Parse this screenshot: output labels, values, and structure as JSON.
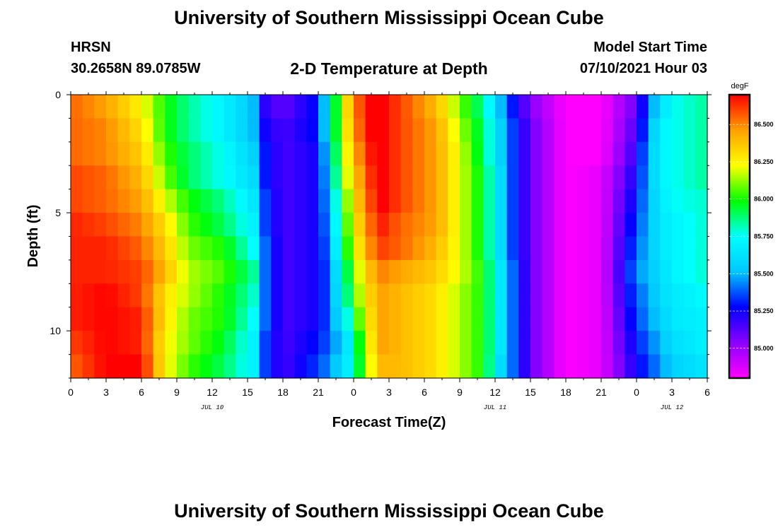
{
  "header": {
    "title": "University of Southern Mississippi Ocean Cube",
    "station": "HRSN",
    "coords": "30.2658N  89.0785W",
    "subtitle": "2-D Temperature at Depth",
    "model_start_label": "Model Start Time",
    "model_start_value": "07/10/2021 Hour 03"
  },
  "footer": {
    "title": "University of Southern Mississippi Ocean Cube"
  },
  "chart_data": {
    "type": "heatmap",
    "title": "2-D Temperature at Depth",
    "xlabel": "Forecast Time(Z)",
    "ylabel": "Depth (ft)",
    "x_ticks": [
      "0",
      "3",
      "6",
      "9",
      "12",
      "15",
      "18",
      "21",
      "0",
      "3",
      "6",
      "9",
      "12",
      "15",
      "18",
      "21",
      "0",
      "3",
      "6"
    ],
    "x_range_hours": [
      0,
      54
    ],
    "date_labels": [
      {
        "label": "JUL 10",
        "hour": 12
      },
      {
        "label": "JUL 11",
        "hour": 36
      },
      {
        "label": "JUL 12",
        "hour": 51
      }
    ],
    "y_ticks": [
      "0",
      "5",
      "10"
    ],
    "y_range_ft": [
      0,
      12
    ],
    "y_inverted": true,
    "colorbar": {
      "unit": "degF",
      "min": 84.8,
      "max": 86.7,
      "labels": [
        "86.500",
        "86.250",
        "86.000",
        "85.750",
        "85.500",
        "85.250",
        "85.000"
      ],
      "colors": [
        "#ff00ff",
        "#8b00ff",
        "#0000ff",
        "#00c8ff",
        "#00ffff",
        "#00ff00",
        "#ffff00",
        "#ffa000",
        "#ff0000"
      ]
    },
    "depths_ft": [
      0.5,
      1.5,
      2.5,
      3.5,
      4.5,
      5.5,
      6.5,
      7.5,
      8.5,
      9.5,
      10.5,
      11.5
    ],
    "time_keys_hours": [
      0,
      3,
      6,
      8,
      10,
      13,
      15.5,
      16.5,
      18,
      21,
      22,
      23,
      24,
      25,
      26.5,
      28,
      31,
      33,
      35,
      36.5,
      37.5,
      39,
      42,
      45,
      48,
      49,
      50,
      51,
      54
    ],
    "temperature_degF": [
      [
        86.55,
        86.45,
        86.25,
        86.0,
        85.85,
        85.7,
        85.5,
        85.2,
        85.1,
        85.3,
        85.7,
        86.2,
        86.45,
        86.7,
        86.7,
        86.6,
        86.4,
        86.1,
        85.85,
        85.5,
        85.3,
        85.05,
        84.8,
        84.8,
        85.1,
        85.4,
        85.6,
        85.75,
        85.85
      ],
      [
        86.55,
        86.5,
        86.3,
        86.0,
        85.85,
        85.7,
        85.5,
        85.25,
        85.15,
        85.3,
        85.7,
        86.2,
        86.4,
        86.7,
        86.7,
        86.6,
        86.45,
        86.15,
        85.9,
        85.55,
        85.35,
        85.1,
        84.8,
        84.8,
        85.15,
        85.45,
        85.7,
        85.75,
        85.85
      ],
      [
        86.55,
        86.5,
        86.35,
        86.05,
        85.9,
        85.75,
        85.55,
        85.3,
        85.15,
        85.25,
        85.65,
        86.15,
        86.35,
        86.65,
        86.7,
        86.6,
        86.45,
        86.2,
        85.9,
        85.55,
        85.35,
        85.1,
        84.8,
        84.8,
        85.2,
        85.5,
        85.7,
        85.75,
        85.85
      ],
      [
        86.6,
        86.55,
        86.4,
        86.1,
        85.9,
        85.75,
        85.6,
        85.3,
        85.15,
        85.25,
        85.6,
        86.1,
        86.3,
        86.6,
        86.7,
        86.6,
        86.45,
        86.2,
        85.95,
        85.6,
        85.35,
        85.1,
        84.8,
        84.85,
        85.25,
        85.5,
        85.7,
        85.75,
        85.85
      ],
      [
        86.6,
        86.55,
        86.45,
        86.2,
        86.0,
        85.85,
        85.65,
        85.35,
        85.15,
        85.25,
        85.55,
        86.0,
        86.25,
        86.55,
        86.7,
        86.6,
        86.45,
        86.2,
        85.95,
        85.6,
        85.35,
        85.1,
        84.8,
        84.85,
        85.3,
        85.5,
        85.65,
        85.75,
        85.8
      ],
      [
        86.65,
        86.6,
        86.5,
        86.3,
        86.05,
        85.9,
        85.7,
        85.35,
        85.15,
        85.25,
        85.5,
        85.95,
        86.2,
        86.5,
        86.65,
        86.55,
        86.45,
        86.2,
        85.95,
        85.6,
        85.35,
        85.1,
        84.8,
        84.85,
        85.35,
        85.5,
        85.65,
        85.7,
        85.8
      ],
      [
        86.65,
        86.65,
        86.55,
        86.35,
        86.1,
        86.0,
        85.75,
        85.4,
        85.15,
        85.25,
        85.45,
        85.9,
        86.15,
        86.45,
        86.6,
        86.55,
        86.4,
        86.2,
        85.95,
        85.6,
        85.35,
        85.1,
        84.8,
        84.85,
        85.4,
        85.5,
        85.65,
        85.7,
        85.8
      ],
      [
        86.65,
        86.65,
        86.6,
        86.4,
        86.15,
        86.05,
        85.85,
        85.4,
        85.15,
        85.25,
        85.4,
        85.8,
        86.05,
        86.35,
        86.5,
        86.45,
        86.35,
        86.2,
        86.0,
        85.65,
        85.4,
        85.1,
        84.8,
        84.85,
        85.45,
        85.5,
        85.6,
        85.7,
        85.8
      ],
      [
        86.65,
        86.7,
        86.6,
        86.3,
        86.15,
        86.0,
        85.8,
        85.4,
        85.15,
        85.25,
        85.4,
        85.75,
        86.0,
        86.3,
        86.45,
        86.4,
        86.3,
        86.15,
        86.0,
        85.65,
        85.4,
        85.1,
        84.8,
        84.85,
        85.4,
        85.45,
        85.6,
        85.65,
        85.75
      ],
      [
        86.65,
        86.7,
        86.65,
        86.3,
        86.1,
        86.0,
        85.75,
        85.4,
        85.15,
        85.25,
        85.4,
        85.65,
        85.9,
        86.25,
        86.45,
        86.4,
        86.3,
        86.15,
        86.0,
        85.65,
        85.4,
        85.1,
        84.8,
        84.85,
        85.35,
        85.45,
        85.55,
        85.65,
        85.7
      ],
      [
        86.6,
        86.7,
        86.65,
        86.25,
        86.1,
        85.95,
        85.7,
        85.35,
        85.15,
        85.3,
        85.4,
        85.55,
        85.75,
        86.2,
        86.45,
        86.4,
        86.3,
        86.15,
        86.0,
        85.65,
        85.4,
        85.1,
        84.8,
        84.85,
        85.3,
        85.4,
        85.5,
        85.6,
        85.7
      ],
      [
        86.55,
        86.7,
        86.7,
        86.25,
        86.05,
        85.9,
        85.7,
        85.35,
        85.15,
        85.35,
        85.45,
        85.6,
        85.75,
        86.15,
        86.4,
        86.4,
        86.3,
        86.15,
        86.0,
        85.6,
        85.4,
        85.1,
        84.8,
        84.85,
        85.25,
        85.35,
        85.45,
        85.55,
        85.65
      ]
    ]
  }
}
